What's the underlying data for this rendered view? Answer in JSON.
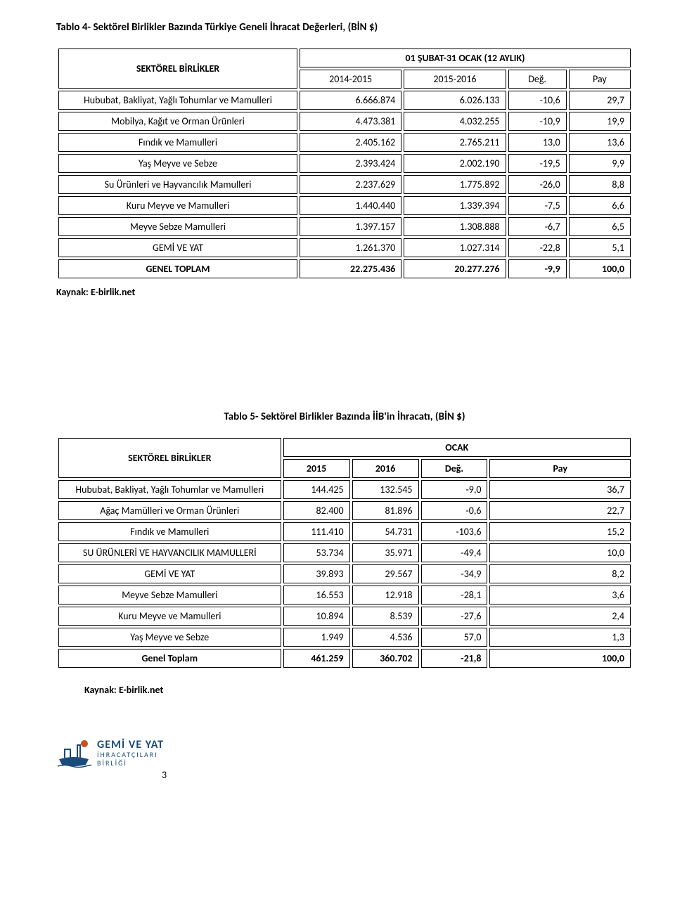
{
  "table4": {
    "title": "Tablo 4- Sektörel Birlikler Bazında Türkiye Geneli İhracat Değerleri, (BİN $)",
    "top_label": "SEKTÖREL BİRLİKLER",
    "period_header": "01 ŞUBAT-31 OCAK (12 AYLIK)",
    "cols": [
      "2014-2015",
      "2015-2016",
      "Değ.",
      "Pay"
    ],
    "rows": [
      {
        "label": "Hububat, Bakliyat, Yağlı Tohumlar ve Mamulleri",
        "v": [
          "6.666.874",
          "6.026.133",
          "-10,6",
          "29,7"
        ],
        "bold": false
      },
      {
        "label": "Mobilya, Kağıt ve Orman Ürünleri",
        "v": [
          "4.473.381",
          "4.032.255",
          "-10,9",
          "19,9"
        ],
        "bold": false
      },
      {
        "label": "Fındık ve Mamulleri",
        "v": [
          "2.405.162",
          "2.765.211",
          "13,0",
          "13,6"
        ],
        "bold": false
      },
      {
        "label": "Yaş Meyve ve Sebze",
        "v": [
          "2.393.424",
          "2.002.190",
          "-19,5",
          "9,9"
        ],
        "bold": false
      },
      {
        "label": "Su Ürünleri ve Hayvancılık Mamulleri",
        "v": [
          "2.237.629",
          "1.775.892",
          "-26,0",
          "8,8"
        ],
        "bold": false
      },
      {
        "label": "Kuru Meyve ve Mamulleri",
        "v": [
          "1.440.440",
          "1.339.394",
          "-7,5",
          "6,6"
        ],
        "bold": false
      },
      {
        "label": "Meyve Sebze Mamulleri",
        "v": [
          "1.397.157",
          "1.308.888",
          "-6,7",
          "6,5"
        ],
        "bold": false
      },
      {
        "label": "GEMİ VE YAT",
        "v": [
          "1.261.370",
          "1.027.314",
          "-22,8",
          "5,1"
        ],
        "bold": false
      },
      {
        "label": "GENEL TOPLAM",
        "v": [
          "22.275.436",
          "20.277.276",
          "-9,9",
          "100,0"
        ],
        "bold": true
      }
    ],
    "source": "Kaynak: E-birlik.net"
  },
  "table5": {
    "title": "Tablo 5- Sektörel Birlikler Bazında İİB'in İhracatı, (BİN $)",
    "top_label": "SEKTÖREL BİRLİKLER",
    "period_header": "OCAK",
    "cols": [
      "2015",
      "2016",
      "Değ.",
      "Pay"
    ],
    "rows": [
      {
        "label": "Hububat, Bakliyat, Yağlı Tohumlar ve Mamulleri",
        "v": [
          "144.425",
          "132.545",
          "-9,0",
          "36,7"
        ],
        "bold": false
      },
      {
        "label": "Ağaç Mamülleri ve Orman Ürünleri",
        "v": [
          "82.400",
          "81.896",
          "-0,6",
          "22,7"
        ],
        "bold": false
      },
      {
        "label": "Fındık ve Mamulleri",
        "v": [
          "111.410",
          "54.731",
          "-103,6",
          "15,2"
        ],
        "bold": false
      },
      {
        "label": "SU ÜRÜNLERİ VE HAYVANCILIK MAMULLERİ",
        "v": [
          "53.734",
          "35.971",
          "-49,4",
          "10,0"
        ],
        "bold": false
      },
      {
        "label": "GEMİ VE YAT",
        "v": [
          "39.893",
          "29.567",
          "-34,9",
          "8,2"
        ],
        "bold": false
      },
      {
        "label": "Meyve Sebze Mamulleri",
        "v": [
          "16.553",
          "12.918",
          "-28,1",
          "3,6"
        ],
        "bold": false
      },
      {
        "label": "Kuru Meyve ve Mamulleri",
        "v": [
          "10.894",
          "8.539",
          "-27,6",
          "2,4"
        ],
        "bold": false
      },
      {
        "label": "Yaş Meyve ve Sebze",
        "v": [
          "1.949",
          "4.536",
          "57,0",
          "1,3"
        ],
        "bold": false
      },
      {
        "label": "Genel Toplam",
        "v": [
          "461.259",
          "360.702",
          "-21,8",
          "100,0"
        ],
        "bold": true
      }
    ],
    "source": "Kaynak: E-birlik.net"
  },
  "logo": {
    "line1": "GEMİ VE YAT",
    "line2": "İHRACATÇILARI",
    "line3": "BİRLİĞİ",
    "color": "#1a4b7a",
    "accent": "#c94f1f"
  },
  "page_number": "3"
}
